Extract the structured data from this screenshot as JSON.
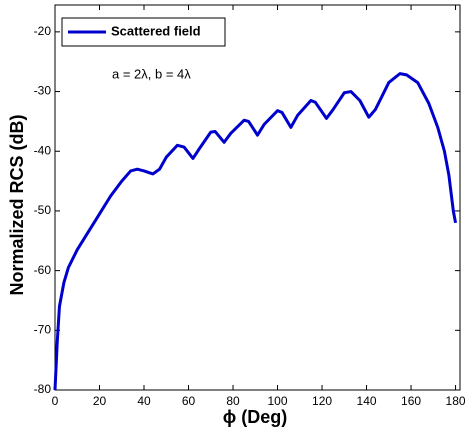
{
  "chart_data": {
    "type": "line",
    "xlabel": "ϕ (Deg)",
    "ylabel": "Normalized RCS (dB)",
    "annotation": "a = 2λ, b = 4λ",
    "legend": "upper left",
    "x": [
      0,
      1,
      2,
      4,
      6,
      10,
      15,
      20,
      25,
      30,
      34,
      37,
      40,
      44,
      47,
      50,
      55,
      58,
      62,
      65,
      70,
      72,
      76,
      79,
      85,
      87,
      91,
      94,
      100,
      102,
      106,
      109,
      115,
      117,
      122,
      125,
      130,
      133,
      137,
      141,
      144,
      150,
      155,
      158,
      163,
      168,
      172,
      175,
      177,
      179,
      180
    ],
    "series": [
      {
        "name": "Scattered field",
        "color": "#0000cc",
        "values": [
          -80,
          -72,
          -66,
          -62,
          -59.5,
          -56.5,
          -53.5,
          -50.5,
          -47.5,
          -45,
          -43.3,
          -43,
          -43.3,
          -43.8,
          -43,
          -41,
          -39,
          -39.3,
          -41.2,
          -39.5,
          -36.8,
          -36.7,
          -38.5,
          -37,
          -34.8,
          -35,
          -37.3,
          -35.5,
          -33.2,
          -33.5,
          -36,
          -34,
          -31.5,
          -31.8,
          -34.5,
          -33,
          -30.2,
          -30,
          -31.5,
          -34.3,
          -33,
          -28.5,
          -27,
          -27.2,
          -28.5,
          -32,
          -36,
          -40,
          -44,
          -50,
          -52
        ]
      }
    ],
    "xlim": [
      0,
      182
    ],
    "ylim": [
      -80,
      -15.5
    ],
    "xticks": [
      0,
      20,
      40,
      60,
      80,
      100,
      120,
      140,
      160,
      180
    ],
    "yticks": [
      -80,
      -70,
      -60,
      -50,
      -40,
      -30,
      -20
    ]
  }
}
